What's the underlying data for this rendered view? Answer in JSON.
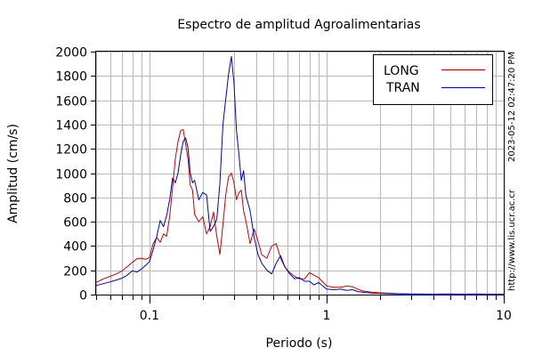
{
  "chart_data": {
    "type": "line",
    "title": "Espectro de amplitud Agroalimentarias",
    "xlabel": "Periodo (s)",
    "ylabel": "Amplitud (cm/s)",
    "x_scale": "log",
    "xlim": [
      0.05,
      10
    ],
    "ylim": [
      0,
      2000
    ],
    "x_tick_labels": [
      "0.1",
      "1",
      "10"
    ],
    "y_tick_labels": [
      "0",
      "200",
      "400",
      "600",
      "800",
      "1000",
      "1200",
      "1400",
      "1600",
      "1800",
      "2000"
    ],
    "grid": true,
    "legend_position": "top-right",
    "side_labels": [
      "2023-05-12 02:47:20 PM",
      "http://www.lis.ucr.ac.cr"
    ],
    "series": [
      {
        "name": "LONG",
        "color": "#cc0000",
        "points": [
          [
            0.05,
            100
          ],
          [
            0.055,
            130
          ],
          [
            0.06,
            150
          ],
          [
            0.065,
            170
          ],
          [
            0.07,
            195
          ],
          [
            0.075,
            230
          ],
          [
            0.08,
            265
          ],
          [
            0.085,
            295
          ],
          [
            0.09,
            300
          ],
          [
            0.095,
            290
          ],
          [
            0.1,
            305
          ],
          [
            0.105,
            420
          ],
          [
            0.11,
            470
          ],
          [
            0.115,
            430
          ],
          [
            0.12,
            500
          ],
          [
            0.125,
            480
          ],
          [
            0.13,
            640
          ],
          [
            0.135,
            880
          ],
          [
            0.14,
            1120
          ],
          [
            0.145,
            1260
          ],
          [
            0.15,
            1350
          ],
          [
            0.155,
            1360
          ],
          [
            0.16,
            1240
          ],
          [
            0.165,
            1120
          ],
          [
            0.17,
            900
          ],
          [
            0.175,
            860
          ],
          [
            0.18,
            660
          ],
          [
            0.19,
            600
          ],
          [
            0.2,
            640
          ],
          [
            0.21,
            500
          ],
          [
            0.22,
            560
          ],
          [
            0.23,
            680
          ],
          [
            0.24,
            480
          ],
          [
            0.25,
            330
          ],
          [
            0.26,
            580
          ],
          [
            0.27,
            830
          ],
          [
            0.28,
            970
          ],
          [
            0.29,
            1000
          ],
          [
            0.3,
            920
          ],
          [
            0.31,
            780
          ],
          [
            0.32,
            840
          ],
          [
            0.33,
            860
          ],
          [
            0.34,
            690
          ],
          [
            0.35,
            610
          ],
          [
            0.37,
            420
          ],
          [
            0.39,
            540
          ],
          [
            0.41,
            440
          ],
          [
            0.43,
            330
          ],
          [
            0.46,
            300
          ],
          [
            0.49,
            400
          ],
          [
            0.52,
            420
          ],
          [
            0.55,
            300
          ],
          [
            0.58,
            230
          ],
          [
            0.62,
            180
          ],
          [
            0.66,
            150
          ],
          [
            0.7,
            130
          ],
          [
            0.75,
            130
          ],
          [
            0.8,
            180
          ],
          [
            0.85,
            160
          ],
          [
            0.9,
            140
          ],
          [
            1.0,
            70
          ],
          [
            1.1,
            60
          ],
          [
            1.2,
            60
          ],
          [
            1.3,
            70
          ],
          [
            1.4,
            65
          ],
          [
            1.5,
            45
          ],
          [
            1.6,
            30
          ],
          [
            1.8,
            20
          ],
          [
            2.0,
            15
          ],
          [
            2.5,
            8
          ],
          [
            3,
            6
          ],
          [
            4,
            4
          ],
          [
            5,
            5
          ],
          [
            6,
            4
          ],
          [
            7,
            5
          ],
          [
            8,
            4
          ],
          [
            10,
            3
          ]
        ]
      },
      {
        "name": "TRAN",
        "color": "#0000cc",
        "points": [
          [
            0.05,
            75
          ],
          [
            0.055,
            90
          ],
          [
            0.06,
            105
          ],
          [
            0.065,
            120
          ],
          [
            0.07,
            135
          ],
          [
            0.075,
            160
          ],
          [
            0.08,
            195
          ],
          [
            0.085,
            185
          ],
          [
            0.09,
            210
          ],
          [
            0.095,
            240
          ],
          [
            0.1,
            270
          ],
          [
            0.105,
            370
          ],
          [
            0.11,
            480
          ],
          [
            0.115,
            610
          ],
          [
            0.12,
            560
          ],
          [
            0.125,
            650
          ],
          [
            0.13,
            780
          ],
          [
            0.135,
            960
          ],
          [
            0.14,
            920
          ],
          [
            0.145,
            1000
          ],
          [
            0.15,
            1150
          ],
          [
            0.155,
            1260
          ],
          [
            0.16,
            1290
          ],
          [
            0.165,
            1210
          ],
          [
            0.17,
            1000
          ],
          [
            0.175,
            920
          ],
          [
            0.18,
            940
          ],
          [
            0.19,
            780
          ],
          [
            0.2,
            840
          ],
          [
            0.21,
            820
          ],
          [
            0.22,
            520
          ],
          [
            0.23,
            560
          ],
          [
            0.24,
            620
          ],
          [
            0.25,
            920
          ],
          [
            0.26,
            1400
          ],
          [
            0.27,
            1620
          ],
          [
            0.28,
            1820
          ],
          [
            0.29,
            1960
          ],
          [
            0.3,
            1740
          ],
          [
            0.31,
            1350
          ],
          [
            0.32,
            1150
          ],
          [
            0.33,
            940
          ],
          [
            0.34,
            1020
          ],
          [
            0.35,
            820
          ],
          [
            0.37,
            690
          ],
          [
            0.39,
            470
          ],
          [
            0.41,
            330
          ],
          [
            0.43,
            260
          ],
          [
            0.46,
            200
          ],
          [
            0.49,
            170
          ],
          [
            0.52,
            260
          ],
          [
            0.55,
            320
          ],
          [
            0.58,
            230
          ],
          [
            0.62,
            170
          ],
          [
            0.66,
            130
          ],
          [
            0.7,
            140
          ],
          [
            0.75,
            110
          ],
          [
            0.8,
            110
          ],
          [
            0.85,
            80
          ],
          [
            0.9,
            100
          ],
          [
            1.0,
            45
          ],
          [
            1.1,
            40
          ],
          [
            1.2,
            45
          ],
          [
            1.3,
            35
          ],
          [
            1.4,
            40
          ],
          [
            1.5,
            25
          ],
          [
            1.6,
            20
          ],
          [
            1.8,
            12
          ],
          [
            2.0,
            10
          ],
          [
            2.5,
            6
          ],
          [
            3,
            4
          ],
          [
            4,
            3
          ],
          [
            5,
            3
          ],
          [
            6,
            3
          ],
          [
            7,
            3
          ],
          [
            8,
            2
          ],
          [
            10,
            2
          ]
        ]
      }
    ]
  }
}
